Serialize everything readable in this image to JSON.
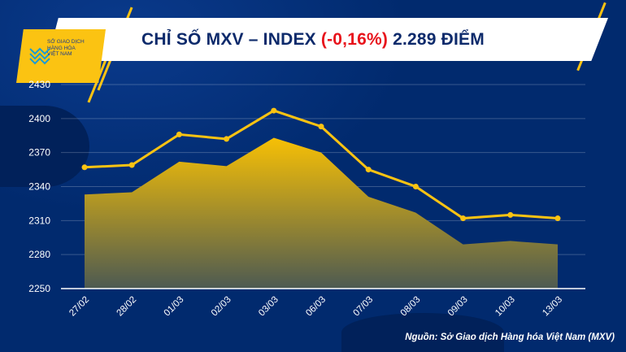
{
  "header": {
    "title_prefix": "CHỈ SỐ MXV – INDEX ",
    "title_change": "(-0,16%)",
    "title_suffix": " 2.289 ĐIỂM",
    "logo_text": "SỞ GIAO DỊCH HÀNG HÓA VIỆT NAM"
  },
  "colors": {
    "accent": "#fbc312",
    "negative": "#e8141c",
    "background": "#012a6e"
  },
  "source": "Nguồn: Sở Giao dịch Hàng hóa Việt Nam (MXV)",
  "chart_data": {
    "type": "area",
    "title": "CHỈ SỐ MXV – INDEX (-0,16%) 2.289 ĐIỂM",
    "categories": [
      "27/02",
      "28/02",
      "01/03",
      "02/03",
      "03/03",
      "06/03",
      "07/03",
      "08/03",
      "09/03",
      "10/03",
      "13/03"
    ],
    "series": [
      {
        "name": "area",
        "values": [
          2333,
          2335,
          2362,
          2358,
          2383,
          2370,
          2331,
          2317,
          2289,
          2292,
          2289
        ]
      },
      {
        "name": "line",
        "values": [
          2357,
          2359,
          2386,
          2382,
          2407,
          2393,
          2355,
          2340,
          2312,
          2315,
          2312
        ]
      }
    ],
    "yticks": [
      2250,
      2280,
      2310,
      2340,
      2370,
      2400,
      2430
    ],
    "ylim": [
      2250,
      2430
    ],
    "grid": true,
    "xlabel": "",
    "ylabel": ""
  }
}
